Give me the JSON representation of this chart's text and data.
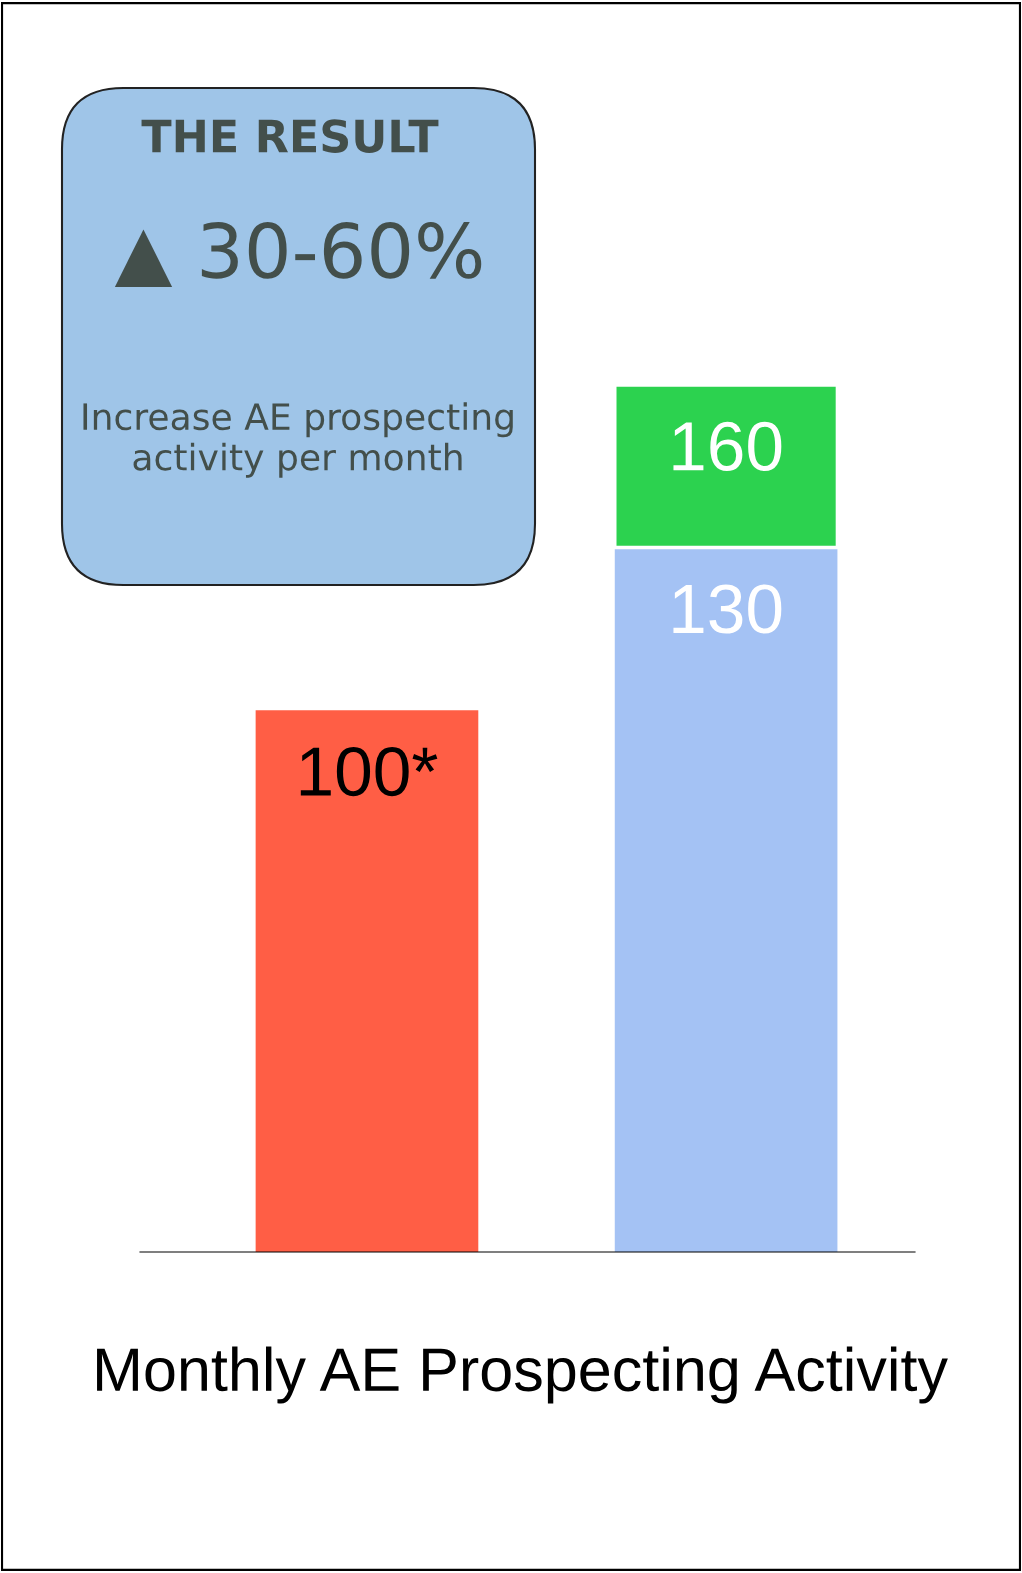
{
  "chart_data": {
    "type": "bar",
    "stacked": true,
    "xlabel": "Monthly AE Prospecting Activity",
    "categories": [
      null,
      null
    ],
    "series": [
      {
        "colors": [
          "#ff5e45",
          "#a4c2f4"
        ],
        "values": [
          100,
          130
        ],
        "value_labels": [
          "100*",
          "130"
        ]
      },
      {
        "colors": [
          null,
          "#2cd24f"
        ],
        "values": [
          null,
          30
        ]
      }
    ],
    "totals": [
      null,
      "160"
    ],
    "annotations": [
      "THE RESULT",
      "▲ 30-60%",
      "Increase AE prospecting activity per month"
    ],
    "grid": false,
    "legend": false
  }
}
